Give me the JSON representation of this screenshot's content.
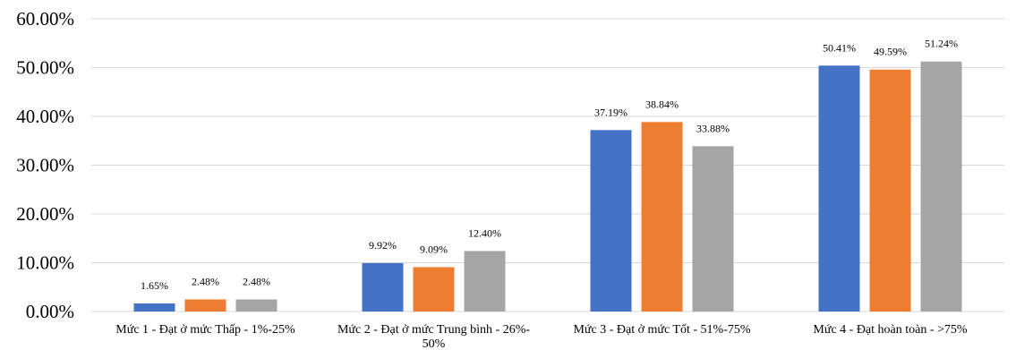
{
  "chart_data": {
    "type": "bar",
    "title": "",
    "xlabel": "",
    "ylabel": "",
    "ylim": [
      0,
      60
    ],
    "y_ticks": [
      0,
      10,
      20,
      30,
      40,
      50,
      60
    ],
    "y_tick_labels": [
      "0.00%",
      "10.00%",
      "20.00%",
      "30.00%",
      "40.00%",
      "50.00%",
      "60.00%"
    ],
    "grid": true,
    "legend": "none",
    "categories": [
      [
        "Mức 1 - Đạt ở mức Thấp - 1%-25%"
      ],
      [
        "Mức 2 - Đạt ở mức Trung bình - 26%-",
        "50%"
      ],
      [
        "Mức 3 - Đạt ở mức Tốt - 51%-75%"
      ],
      [
        "Mức 4 - Đạt hoàn toàn - >75%"
      ]
    ],
    "series": [
      {
        "color": "#4472c4",
        "values": [
          1.65,
          9.92,
          37.19,
          50.41
        ],
        "labels": [
          "1.65%",
          "9.92%",
          "37.19%",
          "50.41%"
        ]
      },
      {
        "color": "#ed7d31",
        "values": [
          2.48,
          9.09,
          38.84,
          49.59
        ],
        "labels": [
          "2.48%",
          "9.09%",
          "38.84%",
          "49.59%"
        ]
      },
      {
        "color": "#a5a5a5",
        "values": [
          2.48,
          12.4,
          33.88,
          51.24
        ],
        "labels": [
          "2.48%",
          "12.40%",
          "33.88%",
          "51.24%"
        ]
      }
    ]
  }
}
